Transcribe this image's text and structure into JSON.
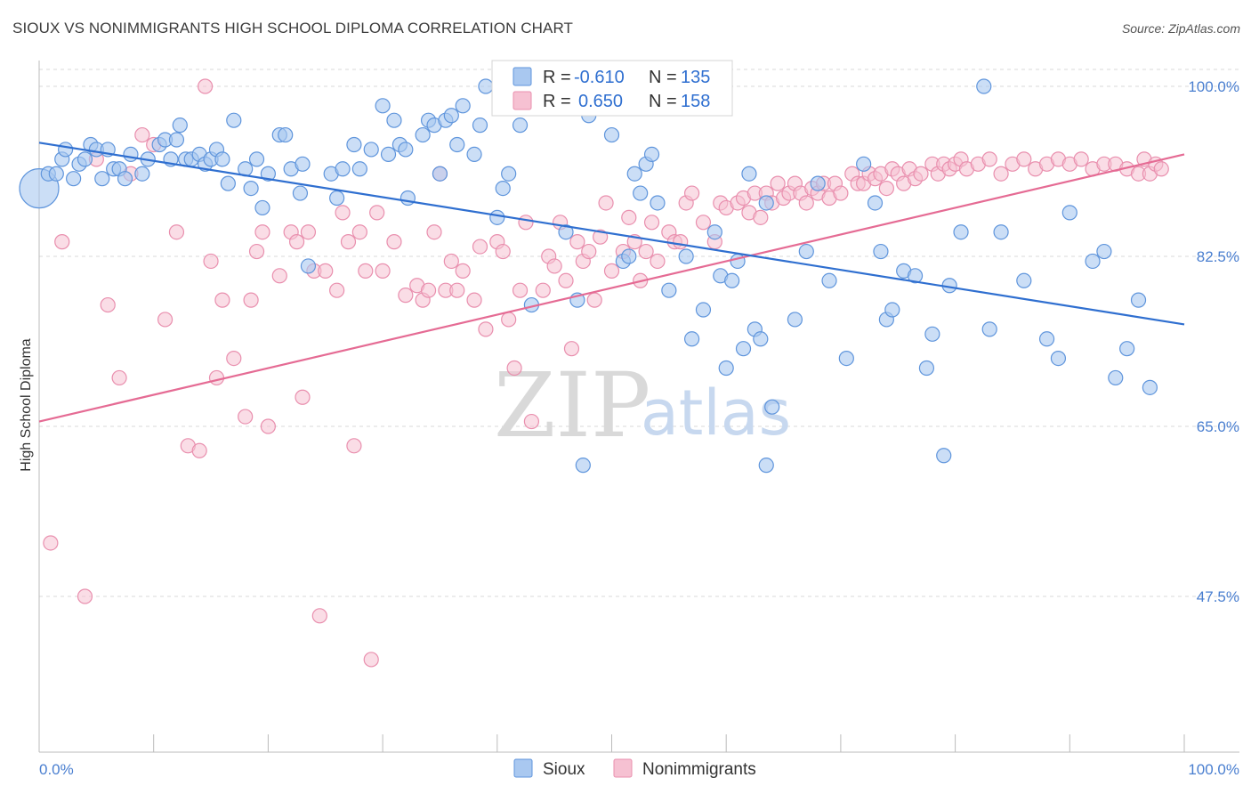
{
  "header": {
    "title": "SIOUX VS NONIMMIGRANTS HIGH SCHOOL DIPLOMA CORRELATION CHART",
    "source": "Source: ZipAtlas.com"
  },
  "watermark": {
    "zip": "ZIP",
    "atlas": "atlas"
  },
  "stats": {
    "r_label": "R =",
    "n_label": "N =",
    "sioux": {
      "r": "-0.610",
      "n": "135"
    },
    "nonimmigrants": {
      "r": "0.650",
      "n": "158"
    }
  },
  "colors": {
    "sioux_fill": "#a9c8f0",
    "sioux_stroke": "#5f95dc",
    "sioux_line": "#2f6fd0",
    "non_fill": "#f6c1d2",
    "non_stroke": "#e98fae",
    "non_line": "#e56b94",
    "grid": "#d8d8d8",
    "tick_text": "#4a7fd0"
  },
  "chart_data": {
    "type": "scatter",
    "title": "SIOUX VS NONIMMIGRANTS HIGH SCHOOL DIPLOMA CORRELATION CHART",
    "xlabel": "",
    "ylabel": "High School Diploma",
    "xlim": [
      0,
      100
    ],
    "ylim": [
      30,
      102
    ],
    "x_tick_labels": [
      "0.0%",
      "100.0%"
    ],
    "y_ticks": [
      47.5,
      65.0,
      82.5,
      100.0
    ],
    "y_tick_labels": [
      "47.5%",
      "65.0%",
      "82.5%",
      "100.0%"
    ],
    "grid": true,
    "legend_position": "bottom-center",
    "series": [
      {
        "name": "Sioux",
        "trend": [
          [
            0,
            94.2
          ],
          [
            100,
            75.5
          ]
        ],
        "points": [
          [
            0,
            89.5
          ],
          [
            0.8,
            91
          ],
          [
            1.5,
            91
          ],
          [
            2,
            92.5
          ],
          [
            2.3,
            93.5
          ],
          [
            3,
            90.5
          ],
          [
            3.5,
            92
          ],
          [
            4,
            92.5
          ],
          [
            4.5,
            94
          ],
          [
            5,
            93.5
          ],
          [
            5.5,
            90.5
          ],
          [
            6,
            93.5
          ],
          [
            6.5,
            91.5
          ],
          [
            7,
            91.5
          ],
          [
            7.5,
            90.5
          ],
          [
            8,
            93
          ],
          [
            9,
            91
          ],
          [
            9.5,
            92.5
          ],
          [
            10.5,
            94
          ],
          [
            11,
            94.5
          ],
          [
            11.5,
            92.5
          ],
          [
            12,
            94.5
          ],
          [
            12.3,
            96
          ],
          [
            12.8,
            92.5
          ],
          [
            13.3,
            92.5
          ],
          [
            14,
            93
          ],
          [
            14.5,
            92
          ],
          [
            15,
            92.5
          ],
          [
            15.5,
            93.5
          ],
          [
            16,
            92.5
          ],
          [
            16.5,
            90
          ],
          [
            17,
            96.5
          ],
          [
            18,
            91.5
          ],
          [
            18.5,
            89.5
          ],
          [
            19,
            92.5
          ],
          [
            19.5,
            87.5
          ],
          [
            20,
            91
          ],
          [
            21,
            95
          ],
          [
            21.5,
            95
          ],
          [
            22,
            91.5
          ],
          [
            22.8,
            89
          ],
          [
            23,
            92
          ],
          [
            23.5,
            81.5
          ],
          [
            25.5,
            91
          ],
          [
            26,
            88.5
          ],
          [
            26.5,
            91.5
          ],
          [
            27.5,
            94
          ],
          [
            28,
            91.5
          ],
          [
            29,
            93.5
          ],
          [
            30,
            98
          ],
          [
            30.5,
            93
          ],
          [
            31,
            96.5
          ],
          [
            31.5,
            94
          ],
          [
            32,
            93.5
          ],
          [
            32.2,
            88.5
          ],
          [
            33.5,
            95
          ],
          [
            34,
            96.5
          ],
          [
            34.5,
            96
          ],
          [
            35,
            91
          ],
          [
            35.5,
            96.5
          ],
          [
            36,
            97
          ],
          [
            36.5,
            94
          ],
          [
            37,
            98
          ],
          [
            38,
            93
          ],
          [
            38.5,
            96
          ],
          [
            39,
            100
          ],
          [
            40,
            86.5
          ],
          [
            40.5,
            89.5
          ],
          [
            41,
            91
          ],
          [
            42,
            96
          ],
          [
            43,
            77.5
          ],
          [
            46,
            85
          ],
          [
            47,
            78
          ],
          [
            47.5,
            61
          ],
          [
            48,
            97
          ],
          [
            50,
            95
          ],
          [
            51,
            82
          ],
          [
            51.5,
            82.5
          ],
          [
            52,
            91
          ],
          [
            52.5,
            89
          ],
          [
            53,
            92
          ],
          [
            53.5,
            93
          ],
          [
            54,
            88
          ],
          [
            55,
            79
          ],
          [
            55.5,
            100
          ],
          [
            56.5,
            82.5
          ],
          [
            57,
            74
          ],
          [
            58,
            77
          ],
          [
            59,
            85
          ],
          [
            59.5,
            80.5
          ],
          [
            60,
            71
          ],
          [
            60.5,
            80
          ],
          [
            61,
            82
          ],
          [
            61.5,
            73
          ],
          [
            62,
            91
          ],
          [
            62.5,
            75
          ],
          [
            63,
            74
          ],
          [
            63.5,
            88
          ],
          [
            63.5,
            61
          ],
          [
            64,
            67
          ],
          [
            66,
            76
          ],
          [
            67,
            83
          ],
          [
            68,
            90
          ],
          [
            69,
            80
          ],
          [
            70.5,
            72
          ],
          [
            72,
            92
          ],
          [
            73,
            88
          ],
          [
            73.5,
            83
          ],
          [
            74,
            76
          ],
          [
            74.5,
            77
          ],
          [
            75.5,
            81
          ],
          [
            76.5,
            80.5
          ],
          [
            77.5,
            71
          ],
          [
            78,
            74.5
          ],
          [
            79,
            62
          ],
          [
            79.5,
            79.5
          ],
          [
            80.5,
            85
          ],
          [
            82.5,
            100
          ],
          [
            83,
            75
          ],
          [
            84,
            85
          ],
          [
            86,
            80
          ],
          [
            88,
            74
          ],
          [
            89,
            72
          ],
          [
            90,
            87
          ],
          [
            92,
            82
          ],
          [
            93,
            83
          ],
          [
            94,
            70
          ],
          [
            95,
            73
          ],
          [
            96,
            78
          ],
          [
            97,
            69
          ]
        ]
      },
      {
        "name": "Nonimmigrants",
        "trend": [
          [
            0,
            65.5
          ],
          [
            100,
            93
          ]
        ],
        "points": [
          [
            1,
            53
          ],
          [
            2,
            84
          ],
          [
            4,
            47.5
          ],
          [
            5,
            92.5
          ],
          [
            6,
            77.5
          ],
          [
            7,
            70
          ],
          [
            8,
            91
          ],
          [
            9,
            95
          ],
          [
            10,
            94
          ],
          [
            11,
            76
          ],
          [
            12,
            85
          ],
          [
            13,
            63
          ],
          [
            14,
            62.5
          ],
          [
            14.5,
            100
          ],
          [
            15,
            82
          ],
          [
            15.5,
            70
          ],
          [
            16,
            78
          ],
          [
            17,
            72
          ],
          [
            18,
            66
          ],
          [
            18.5,
            78
          ],
          [
            19,
            83
          ],
          [
            19.5,
            85
          ],
          [
            20,
            65
          ],
          [
            21,
            80.5
          ],
          [
            22,
            85
          ],
          [
            22.5,
            84
          ],
          [
            23,
            68
          ],
          [
            23.5,
            85
          ],
          [
            24,
            81
          ],
          [
            24.5,
            45.5
          ],
          [
            25,
            81
          ],
          [
            26,
            79
          ],
          [
            26.5,
            87
          ],
          [
            27,
            84
          ],
          [
            27.5,
            63
          ],
          [
            28,
            85
          ],
          [
            28.5,
            81
          ],
          [
            29,
            41
          ],
          [
            29.5,
            87
          ],
          [
            30,
            81
          ],
          [
            31,
            84
          ],
          [
            32,
            78.5
          ],
          [
            33,
            79.5
          ],
          [
            33.5,
            78
          ],
          [
            34,
            79
          ],
          [
            34.5,
            85
          ],
          [
            35,
            91
          ],
          [
            35.5,
            79
          ],
          [
            36,
            82
          ],
          [
            36.5,
            79
          ],
          [
            37,
            81
          ],
          [
            38,
            78
          ],
          [
            38.5,
            83.5
          ],
          [
            39,
            75
          ],
          [
            40,
            84
          ],
          [
            40.5,
            83
          ],
          [
            41,
            76
          ],
          [
            41.5,
            71
          ],
          [
            42,
            79
          ],
          [
            42.5,
            86
          ],
          [
            43,
            65.5
          ],
          [
            44,
            79
          ],
          [
            44.5,
            82.5
          ],
          [
            45,
            81.5
          ],
          [
            45.5,
            86
          ],
          [
            46,
            80
          ],
          [
            46.5,
            73
          ],
          [
            47,
            84
          ],
          [
            47.5,
            82
          ],
          [
            48,
            83
          ],
          [
            48.5,
            78
          ],
          [
            49,
            84.5
          ],
          [
            49.5,
            88
          ],
          [
            50,
            81
          ],
          [
            51,
            83
          ],
          [
            51.5,
            86.5
          ],
          [
            52,
            84
          ],
          [
            52.5,
            80
          ],
          [
            53,
            83
          ],
          [
            53.5,
            86
          ],
          [
            54,
            82
          ],
          [
            55,
            85
          ],
          [
            55.5,
            84
          ],
          [
            56,
            84
          ],
          [
            56.5,
            88
          ],
          [
            57,
            89
          ],
          [
            58,
            86
          ],
          [
            59,
            84
          ],
          [
            59.5,
            88
          ],
          [
            60,
            87.5
          ],
          [
            61,
            88
          ],
          [
            61.5,
            88.5
          ],
          [
            62,
            87
          ],
          [
            62.5,
            89
          ],
          [
            63,
            86.5
          ],
          [
            63.5,
            89
          ],
          [
            64,
            88
          ],
          [
            64.5,
            90
          ],
          [
            65,
            88.5
          ],
          [
            65.5,
            89
          ],
          [
            66,
            90
          ],
          [
            66.5,
            89
          ],
          [
            67,
            88
          ],
          [
            67.5,
            89.5
          ],
          [
            68,
            89
          ],
          [
            68.5,
            90
          ],
          [
            69,
            88.5
          ],
          [
            69.5,
            90
          ],
          [
            70,
            89
          ],
          [
            71,
            91
          ],
          [
            71.5,
            90
          ],
          [
            72,
            90
          ],
          [
            72.5,
            91
          ],
          [
            73,
            90.5
          ],
          [
            73.5,
            91
          ],
          [
            74,
            89.5
          ],
          [
            74.5,
            91.5
          ],
          [
            75,
            91
          ],
          [
            75.5,
            90
          ],
          [
            76,
            91.5
          ],
          [
            76.5,
            90.5
          ],
          [
            77,
            91
          ],
          [
            78,
            92
          ],
          [
            78.5,
            91
          ],
          [
            79,
            92
          ],
          [
            79.5,
            91.5
          ],
          [
            80,
            92
          ],
          [
            80.5,
            92.5
          ],
          [
            81,
            91.5
          ],
          [
            82,
            92
          ],
          [
            83,
            92.5
          ],
          [
            84,
            91
          ],
          [
            85,
            92
          ],
          [
            86,
            92.5
          ],
          [
            87,
            91.5
          ],
          [
            88,
            92
          ],
          [
            89,
            92.5
          ],
          [
            90,
            92
          ],
          [
            91,
            92.5
          ],
          [
            92,
            91.5
          ],
          [
            93,
            92
          ],
          [
            94,
            92
          ],
          [
            95,
            91.5
          ],
          [
            96,
            91
          ],
          [
            96.5,
            92.5
          ],
          [
            97,
            91
          ],
          [
            97.5,
            92
          ],
          [
            98,
            91.5
          ]
        ]
      }
    ]
  },
  "legend": {
    "items": [
      "Sioux",
      "Nonimmigrants"
    ]
  }
}
